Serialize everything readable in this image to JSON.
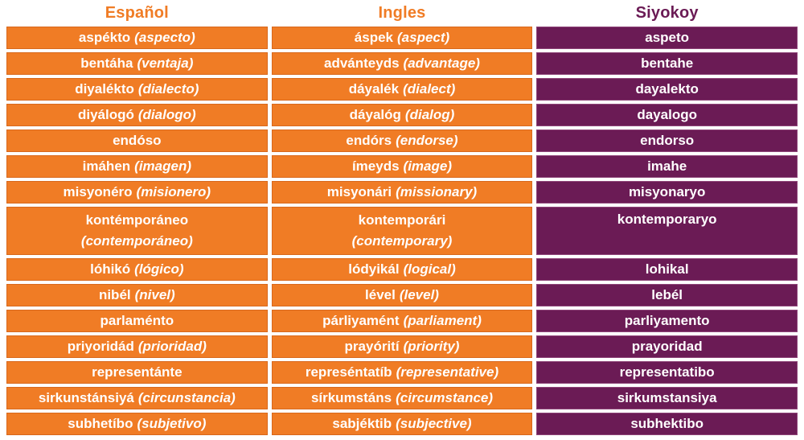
{
  "colors": {
    "orange_cell": "#F07C25",
    "orange_cell_border": "#D8681C",
    "purple_cell": "#6B1B55",
    "purple_cell_border": "#8E4578",
    "header_orange_text": "#F07C25",
    "header_purple_text": "#6B1B55",
    "cell_text": "#FFFFFF",
    "page_background": "#FFFFFF"
  },
  "headers": [
    {
      "label": "Español"
    },
    {
      "label": "Ingles"
    },
    {
      "label": "Siyokoy"
    }
  ],
  "rows": [
    {
      "es": {
        "word": "aspékto",
        "gloss": "(aspecto)"
      },
      "en": {
        "word": "áspek",
        "gloss": "(aspect)"
      },
      "sy": {
        "word": "aspeto"
      },
      "two_line": false
    },
    {
      "es": {
        "word": "bentáha",
        "gloss": "(ventaja)"
      },
      "en": {
        "word": "advánteyds",
        "gloss": "(advantage)"
      },
      "sy": {
        "word": "bentahe"
      },
      "two_line": false
    },
    {
      "es": {
        "word": "diyalékto",
        "gloss": "(dialecto)"
      },
      "en": {
        "word": "dáyalék",
        "gloss": "(dialect)"
      },
      "sy": {
        "word": "dayalekto"
      },
      "two_line": false
    },
    {
      "es": {
        "word": "diyálogó",
        "gloss": "(dialogo)"
      },
      "en": {
        "word": "dáyalóg",
        "gloss": "(dialog)"
      },
      "sy": {
        "word": "dayalogo"
      },
      "two_line": false
    },
    {
      "es": {
        "word": "endóso",
        "gloss": ""
      },
      "en": {
        "word": "endórs",
        "gloss": "(endorse)"
      },
      "sy": {
        "word": "endorso"
      },
      "two_line": false
    },
    {
      "es": {
        "word": "imáhen",
        "gloss": "(imagen)"
      },
      "en": {
        "word": "ímeyds",
        "gloss": "(image)"
      },
      "sy": {
        "word": "imahe"
      },
      "two_line": false
    },
    {
      "es": {
        "word": "misyonéro",
        "gloss": "(misionero)"
      },
      "en": {
        "word": "misyonári",
        "gloss": "(missionary)"
      },
      "sy": {
        "word": "misyonaryo"
      },
      "two_line": false
    },
    {
      "es": {
        "word": "kontémporáneo",
        "gloss": "(contemporáneo)"
      },
      "en": {
        "word": "kontemporári",
        "gloss": "(contemporary)"
      },
      "sy": {
        "word": "kontemporaryo"
      },
      "two_line": true
    },
    {
      "es": {
        "word": "lóhikó",
        "gloss": "(lógico)"
      },
      "en": {
        "word": "lódyikál",
        "gloss": "(logical)"
      },
      "sy": {
        "word": "lohikal"
      },
      "two_line": false
    },
    {
      "es": {
        "word": "nibél",
        "gloss": "(nivel)"
      },
      "en": {
        "word": "lével",
        "gloss": "(level)"
      },
      "sy": {
        "word": "lebél"
      },
      "two_line": false
    },
    {
      "es": {
        "word": "parlaménto",
        "gloss": ""
      },
      "en": {
        "word": "párliyamént",
        "gloss": "(parliament)"
      },
      "sy": {
        "word": "parliyamento"
      },
      "two_line": false
    },
    {
      "es": {
        "word": "priyoridád",
        "gloss": "(prioridad)"
      },
      "en": {
        "word": "prayórití",
        "gloss": "(priority)"
      },
      "sy": {
        "word": "prayoridad"
      },
      "two_line": false
    },
    {
      "es": {
        "word": "representánte",
        "gloss": ""
      },
      "en": {
        "word": "represéntatíb",
        "gloss": "(representative)"
      },
      "sy": {
        "word": "representatibo"
      },
      "two_line": false
    },
    {
      "es": {
        "word": "sirkunstánsiyá",
        "gloss": "(circunstancia)"
      },
      "en": {
        "word": "sírkumstáns",
        "gloss": "(circumstance)"
      },
      "sy": {
        "word": "sirkumstansiya"
      },
      "two_line": false
    },
    {
      "es": {
        "word": "subhetíbo",
        "gloss": "(subjetivo)"
      },
      "en": {
        "word": "sabjéktib",
        "gloss": "(subjective)"
      },
      "sy": {
        "word": "subhektibo"
      },
      "two_line": false
    }
  ]
}
